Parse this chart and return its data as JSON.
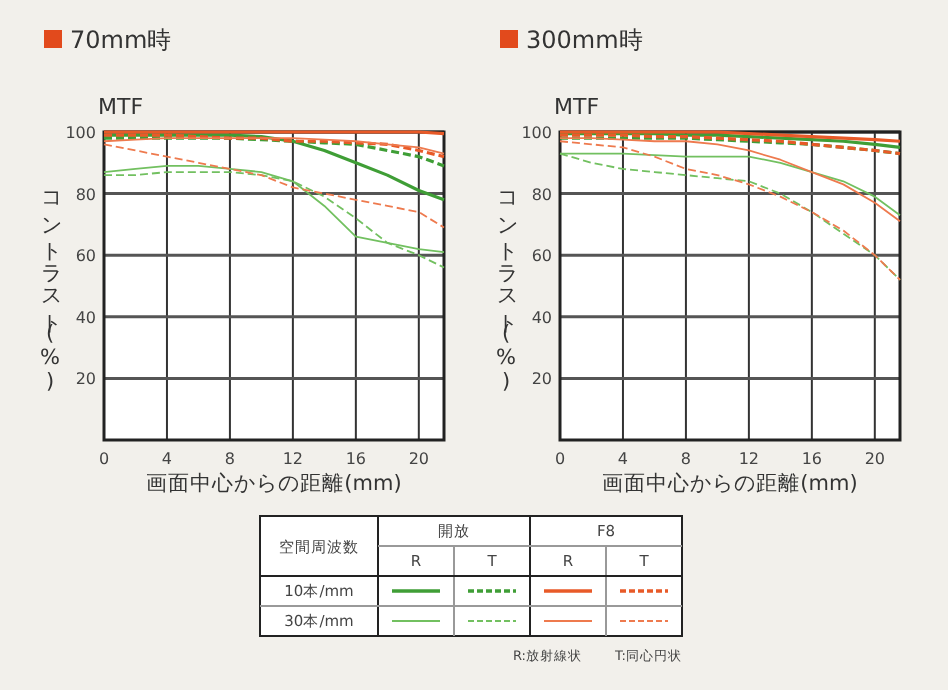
{
  "chart_data": [
    {
      "type": "line",
      "title": "70mm時",
      "subtitle": "MTF",
      "xlabel": "画面中心からの距離(mm)",
      "ylabel": "コントラスト(%)",
      "xlim": [
        0,
        21.6
      ],
      "xticks": [
        0,
        4,
        8,
        12,
        16,
        20
      ],
      "ylim": [
        0,
        100
      ],
      "yticks": [
        20,
        40,
        60,
        80,
        100
      ],
      "grid": true,
      "x": [
        0,
        2,
        4,
        6,
        8,
        10,
        12,
        14,
        16,
        18,
        20,
        21.6
      ],
      "series": [
        {
          "color": "#3f9e36",
          "line_style": "solid",
          "values": [
            99,
            99,
            99,
            99,
            99,
            98.5,
            97,
            94,
            90,
            86,
            81,
            78
          ]
        },
        {
          "color": "#3f9e36",
          "line_style": "dashed",
          "values": [
            98,
            98,
            98,
            98,
            98,
            97.5,
            97,
            96.5,
            96,
            94,
            92,
            89
          ]
        },
        {
          "color": "#e85a28",
          "line_style": "solid",
          "values": [
            100,
            100,
            100,
            100,
            100,
            100,
            100,
            100,
            100,
            100,
            100,
            99.5
          ]
        },
        {
          "color": "#e85a28",
          "line_style": "dashed",
          "values": [
            99,
            99,
            99,
            98.5,
            98,
            98,
            97,
            97,
            96.5,
            96,
            94,
            92
          ]
        },
        {
          "color": "#72c060",
          "line_style": "solid",
          "values": [
            87,
            88,
            89,
            89,
            88,
            87,
            84,
            76,
            66,
            64,
            62,
            61
          ]
        },
        {
          "color": "#72c060",
          "line_style": "dashed",
          "values": [
            86,
            86,
            87,
            87,
            87,
            86,
            84,
            79,
            72,
            64,
            60,
            56
          ]
        },
        {
          "color": "#ee7a4e",
          "line_style": "solid",
          "values": [
            97,
            97.5,
            98,
            98,
            98,
            98,
            98,
            97.5,
            97,
            96,
            95,
            93
          ]
        },
        {
          "color": "#ee7a4e",
          "line_style": "dashed",
          "values": [
            96,
            94,
            92,
            90,
            88,
            86,
            82,
            80,
            78,
            76,
            74,
            69
          ]
        }
      ]
    },
    {
      "type": "line",
      "title": "300mm時",
      "subtitle": "MTF",
      "xlabel": "画面中心からの距離(mm)",
      "ylabel": "コントラスト(%)",
      "xlim": [
        0,
        21.6
      ],
      "xticks": [
        0,
        4,
        8,
        12,
        16,
        20
      ],
      "ylim": [
        0,
        100
      ],
      "yticks": [
        20,
        40,
        60,
        80,
        100
      ],
      "grid": true,
      "x": [
        0,
        2,
        4,
        6,
        8,
        10,
        12,
        14,
        16,
        18,
        20,
        21.6
      ],
      "series": [
        {
          "color": "#3f9e36",
          "line_style": "solid",
          "values": [
            99.5,
            99.5,
            99.5,
            99.5,
            99,
            99,
            98.5,
            98,
            97.5,
            97,
            96,
            95
          ]
        },
        {
          "color": "#3f9e36",
          "line_style": "dashed",
          "values": [
            98,
            98,
            98,
            98,
            98,
            97.5,
            97,
            96.5,
            96,
            95,
            94,
            93
          ]
        },
        {
          "color": "#e85a28",
          "line_style": "solid",
          "values": [
            100,
            100,
            100,
            100,
            100,
            100,
            99.5,
            99,
            98.5,
            98,
            97.5,
            97
          ]
        },
        {
          "color": "#e85a28",
          "line_style": "dashed",
          "values": [
            99,
            99,
            99,
            98.5,
            98.5,
            98,
            97.5,
            97,
            96,
            95,
            94,
            93
          ]
        },
        {
          "color": "#72c060",
          "line_style": "solid",
          "values": [
            93,
            93,
            93,
            92.5,
            92,
            92,
            92,
            90,
            87,
            84,
            79,
            73
          ]
        },
        {
          "color": "#72c060",
          "line_style": "dashed",
          "values": [
            93,
            90,
            88,
            87,
            86,
            85,
            84,
            80,
            74,
            67,
            60,
            52
          ]
        },
        {
          "color": "#ee7a4e",
          "line_style": "solid",
          "values": [
            98,
            98,
            97.5,
            97,
            97,
            96,
            94,
            91,
            87,
            83,
            77,
            71
          ]
        },
        {
          "color": "#ee7a4e",
          "line_style": "dashed",
          "values": [
            97,
            96,
            95,
            92,
            88,
            86,
            83,
            79,
            74,
            68,
            60,
            52
          ]
        }
      ]
    },
    {
      "type": "other",
      "annotations": [
        "空間周波数",
        "開放",
        "F8",
        "R",
        "T",
        "R",
        "T",
        "10本/mm",
        "30本/mm",
        "R:放射線状",
        "T:同心円状"
      ]
    }
  ]
}
